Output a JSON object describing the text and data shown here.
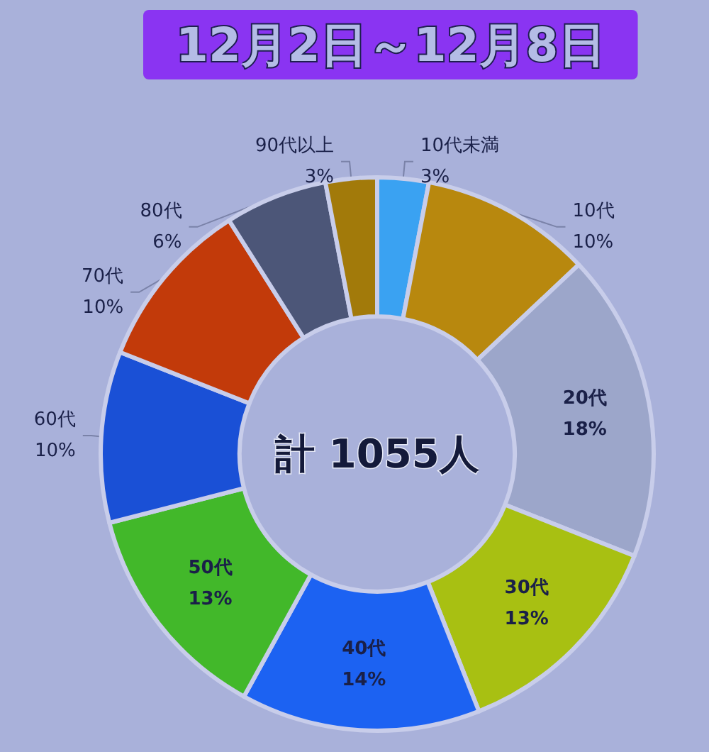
{
  "chart_data": {
    "type": "donut",
    "title": "12月2日～12月8日",
    "categories": [
      "10代未満",
      "10代",
      "20代",
      "30代",
      "40代",
      "50代",
      "60代",
      "70代",
      "80代",
      "90代以上"
    ],
    "values": [
      3,
      10,
      18,
      13,
      14,
      13,
      10,
      10,
      6,
      3
    ],
    "colors": [
      "#3aa2f2",
      "#b8880e",
      "#9ca6ca",
      "#a8c012",
      "#1c62f2",
      "#42b82a",
      "#1a50d6",
      "#c23a0a",
      "#4c5678",
      "#a27a0a"
    ],
    "value_labels": [
      "3%",
      "10%",
      "18%",
      "13%",
      "14%",
      "13%",
      "10%",
      "10%",
      "6%",
      "3%"
    ],
    "annotations": [
      "計 1055人"
    ]
  }
}
